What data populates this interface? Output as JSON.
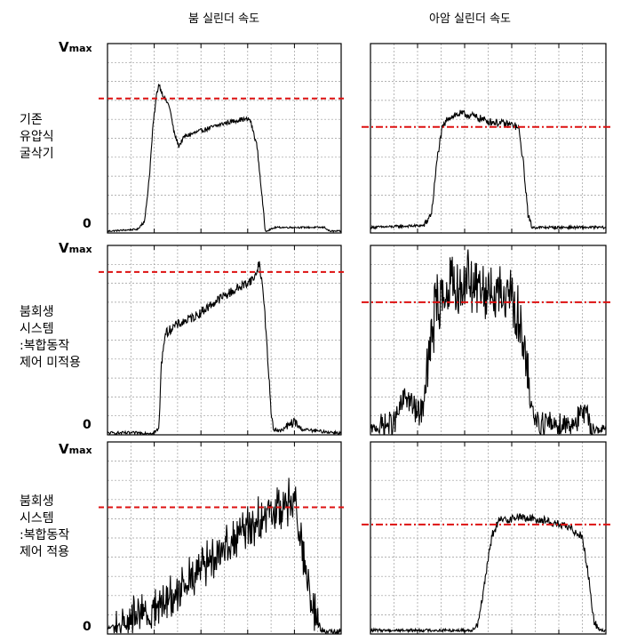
{
  "headers": {
    "col1": "붐 실린더 속도",
    "col2": "아암 실린더 속도"
  },
  "rows": [
    {
      "label_lines": [
        "기존",
        "유압식",
        "굴삭기"
      ]
    },
    {
      "label_lines": [
        "붐회생",
        "시스템",
        ":복합동작",
        "제어 미적용"
      ]
    },
    {
      "label_lines": [
        "붐회생",
        "시스템",
        ":복합동작",
        "제어 적용"
      ]
    }
  ],
  "axis": {
    "vmax_main": "V",
    "vmax_sub": "max",
    "zero": "0"
  },
  "colors": {
    "signal": "#000000",
    "reference": "#dd1111",
    "grid": "#9a9a9a",
    "frame": "#000000"
  },
  "chart_data": [
    {
      "type": "line",
      "row": 1,
      "column": 1,
      "x": [
        0,
        10
      ],
      "ylim": [
        0,
        1
      ],
      "reference_y": 0.71,
      "series": [
        {
          "shape": [
            [
              0,
              0
            ],
            [
              1.3,
              0.01
            ],
            [
              1.6,
              0.06
            ],
            [
              1.8,
              0.3
            ],
            [
              1.95,
              0.56
            ],
            [
              2.1,
              0.72
            ],
            [
              2.2,
              0.78
            ],
            [
              2.3,
              0.74
            ],
            [
              2.45,
              0.7
            ],
            [
              2.65,
              0.66
            ],
            [
              2.85,
              0.52
            ],
            [
              3.05,
              0.45
            ],
            [
              3.3,
              0.5
            ],
            [
              4.0,
              0.53
            ],
            [
              5.0,
              0.57
            ],
            [
              5.7,
              0.59
            ],
            [
              6.1,
              0.59
            ],
            [
              6.4,
              0.45
            ],
            [
              6.6,
              0.2
            ],
            [
              6.75,
              0
            ],
            [
              7.2,
              0.02
            ],
            [
              8.2,
              0.02
            ],
            [
              9.3,
              0.02
            ],
            [
              9.5,
              0
            ]
          ]
        }
      ]
    },
    {
      "type": "line",
      "row": 1,
      "column": 2,
      "x": [
        0,
        10
      ],
      "ylim": [
        0,
        1
      ],
      "reference_y": 0.56,
      "series": [
        {
          "shape": [
            [
              0,
              0.02
            ],
            [
              2.3,
              0.03
            ],
            [
              2.6,
              0.1
            ],
            [
              2.85,
              0.4
            ],
            [
              3.05,
              0.54
            ],
            [
              3.3,
              0.6
            ],
            [
              3.8,
              0.62
            ],
            [
              4.3,
              0.61
            ],
            [
              5.0,
              0.58
            ],
            [
              6.1,
              0.56
            ],
            [
              6.3,
              0.54
            ],
            [
              6.5,
              0.35
            ],
            [
              6.7,
              0.08
            ],
            [
              6.85,
              0.02
            ],
            [
              10,
              0.02
            ]
          ]
        }
      ]
    },
    {
      "type": "line",
      "row": 2,
      "column": 1,
      "x": [
        0,
        10
      ],
      "ylim": [
        0,
        1
      ],
      "reference_y": 0.86,
      "series": [
        {
          "shape": [
            [
              0,
              0
            ],
            [
              1.9,
              0
            ],
            [
              2.2,
              0.02
            ],
            [
              2.3,
              0.35
            ],
            [
              2.45,
              0.52
            ],
            [
              2.8,
              0.56
            ],
            [
              3.8,
              0.62
            ],
            [
              4.8,
              0.71
            ],
            [
              5.8,
              0.78
            ],
            [
              6.3,
              0.82
            ],
            [
              6.5,
              0.9
            ],
            [
              6.7,
              0.7
            ],
            [
              6.85,
              0.4
            ],
            [
              7.0,
              0.12
            ],
            [
              7.1,
              0.02
            ],
            [
              7.4,
              0.01
            ],
            [
              8.0,
              0.06
            ],
            [
              8.3,
              0.02
            ],
            [
              9.0,
              0.01
            ],
            [
              10,
              0
            ]
          ]
        }
      ]
    },
    {
      "type": "line",
      "row": 2,
      "column": 2,
      "x": [
        0,
        10
      ],
      "ylim": [
        0,
        1
      ],
      "reference_y": 0.7,
      "series": [
        {
          "shape": [
            [
              0,
              0.02
            ],
            [
              1.0,
              0.05
            ],
            [
              1.5,
              0.2
            ],
            [
              2.0,
              0.1
            ],
            [
              2.2,
              0.12
            ],
            [
              2.5,
              0.4
            ],
            [
              2.8,
              0.68
            ],
            [
              3.2,
              0.74
            ],
            [
              4.0,
              0.8
            ],
            [
              5.0,
              0.75
            ],
            [
              6.0,
              0.72
            ],
            [
              6.3,
              0.6
            ],
            [
              6.6,
              0.35
            ],
            [
              6.9,
              0.1
            ],
            [
              7.2,
              0.05
            ],
            [
              8.5,
              0.05
            ],
            [
              9.1,
              0.1
            ],
            [
              9.5,
              0.02
            ]
          ]
        }
      ]
    },
    {
      "type": "line",
      "row": 3,
      "column": 1,
      "x": [
        0,
        10
      ],
      "ylim": [
        0,
        1
      ],
      "reference_y": 0.66,
      "series": [
        {
          "shape": [
            [
              0,
              0.02
            ],
            [
              1.0,
              0.06
            ],
            [
              2.0,
              0.12
            ],
            [
              3.0,
              0.22
            ],
            [
              4.0,
              0.34
            ],
            [
              5.0,
              0.45
            ],
            [
              6.0,
              0.55
            ],
            [
              7.0,
              0.62
            ],
            [
              7.7,
              0.68
            ],
            [
              8.0,
              0.72
            ],
            [
              8.2,
              0.55
            ],
            [
              8.5,
              0.3
            ],
            [
              8.8,
              0.15
            ],
            [
              9.1,
              0.02
            ],
            [
              9.3,
              0
            ]
          ]
        }
      ]
    },
    {
      "type": "line",
      "row": 3,
      "column": 2,
      "x": [
        0,
        10
      ],
      "ylim": [
        0,
        1
      ],
      "reference_y": 0.57,
      "series": [
        {
          "shape": [
            [
              0,
              0.01
            ],
            [
              4.3,
              0.01
            ],
            [
              4.55,
              0.04
            ],
            [
              4.85,
              0.25
            ],
            [
              5.15,
              0.5
            ],
            [
              5.45,
              0.58
            ],
            [
              6.3,
              0.6
            ],
            [
              7.5,
              0.58
            ],
            [
              8.5,
              0.54
            ],
            [
              9.0,
              0.5
            ],
            [
              9.25,
              0.3
            ],
            [
              9.5,
              0.05
            ],
            [
              9.75,
              0.01
            ],
            [
              10,
              0.01
            ]
          ]
        }
      ]
    }
  ]
}
